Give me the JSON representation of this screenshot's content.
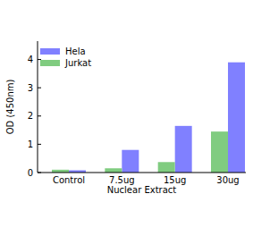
{
  "chart_data": {
    "type": "bar",
    "categories": [
      "Control",
      "7.5ug",
      "15ug",
      "30ug"
    ],
    "series": [
      {
        "name": "Hela",
        "color": "#8080ff",
        "values": [
          0.08,
          0.8,
          1.65,
          3.9
        ]
      },
      {
        "name": "Jurkat",
        "color": "#80cc80",
        "values": [
          0.1,
          0.15,
          0.37,
          1.45
        ]
      }
    ],
    "x_label": "Nuclear Extract",
    "y_label": "OD (450nm)",
    "ylim": [
      0,
      4.65
    ],
    "yticks": [
      0,
      1,
      2,
      3,
      4
    ],
    "grid": false,
    "legend": "upper left"
  }
}
